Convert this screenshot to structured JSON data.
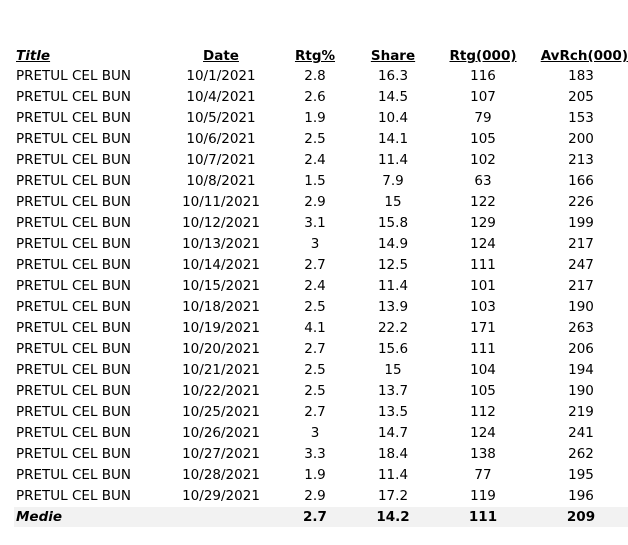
{
  "headers": [
    "Title",
    "Date",
    "Rtg%",
    "Share",
    "Rtg(000)",
    "AvRch(000)"
  ],
  "rows": [
    [
      "PRETUL CEL BUN",
      "10/1/2021",
      "2.8",
      "16.3",
      "116",
      "183"
    ],
    [
      "PRETUL CEL BUN",
      "10/4/2021",
      "2.6",
      "14.5",
      "107",
      "205"
    ],
    [
      "PRETUL CEL BUN",
      "10/5/2021",
      "1.9",
      "10.4",
      "79",
      "153"
    ],
    [
      "PRETUL CEL BUN",
      "10/6/2021",
      "2.5",
      "14.1",
      "105",
      "200"
    ],
    [
      "PRETUL CEL BUN",
      "10/7/2021",
      "2.4",
      "11.4",
      "102",
      "213"
    ],
    [
      "PRETUL CEL BUN",
      "10/8/2021",
      "1.5",
      "7.9",
      "63",
      "166"
    ],
    [
      "PRETUL CEL BUN",
      "10/11/2021",
      "2.9",
      "15",
      "122",
      "226"
    ],
    [
      "PRETUL CEL BUN",
      "10/12/2021",
      "3.1",
      "15.8",
      "129",
      "199"
    ],
    [
      "PRETUL CEL BUN",
      "10/13/2021",
      "3",
      "14.9",
      "124",
      "217"
    ],
    [
      "PRETUL CEL BUN",
      "10/14/2021",
      "2.7",
      "12.5",
      "111",
      "247"
    ],
    [
      "PRETUL CEL BUN",
      "10/15/2021",
      "2.4",
      "11.4",
      "101",
      "217"
    ],
    [
      "PRETUL CEL BUN",
      "10/18/2021",
      "2.5",
      "13.9",
      "103",
      "190"
    ],
    [
      "PRETUL CEL BUN",
      "10/19/2021",
      "4.1",
      "22.2",
      "171",
      "263"
    ],
    [
      "PRETUL CEL BUN",
      "10/20/2021",
      "2.7",
      "15.6",
      "111",
      "206"
    ],
    [
      "PRETUL CEL BUN",
      "10/21/2021",
      "2.5",
      "15",
      "104",
      "194"
    ],
    [
      "PRETUL CEL BUN",
      "10/22/2021",
      "2.5",
      "13.7",
      "105",
      "190"
    ],
    [
      "PRETUL CEL BUN",
      "10/25/2021",
      "2.7",
      "13.5",
      "112",
      "219"
    ],
    [
      "PRETUL CEL BUN",
      "10/26/2021",
      "3",
      "14.7",
      "124",
      "241"
    ],
    [
      "PRETUL CEL BUN",
      "10/27/2021",
      "3.3",
      "18.4",
      "138",
      "262"
    ],
    [
      "PRETUL CEL BUN",
      "10/28/2021",
      "1.9",
      "11.4",
      "77",
      "195"
    ],
    [
      "PRETUL CEL BUN",
      "10/29/2021",
      "2.9",
      "17.2",
      "119",
      "196"
    ]
  ],
  "summary": {
    "label": "Medie",
    "date": "",
    "rtg_pct": "2.7",
    "share": "14.2",
    "rtg_000": "111",
    "avrch_000": "209"
  },
  "colors": {
    "summary_background": "#f2f2f2",
    "text": "#000000"
  }
}
